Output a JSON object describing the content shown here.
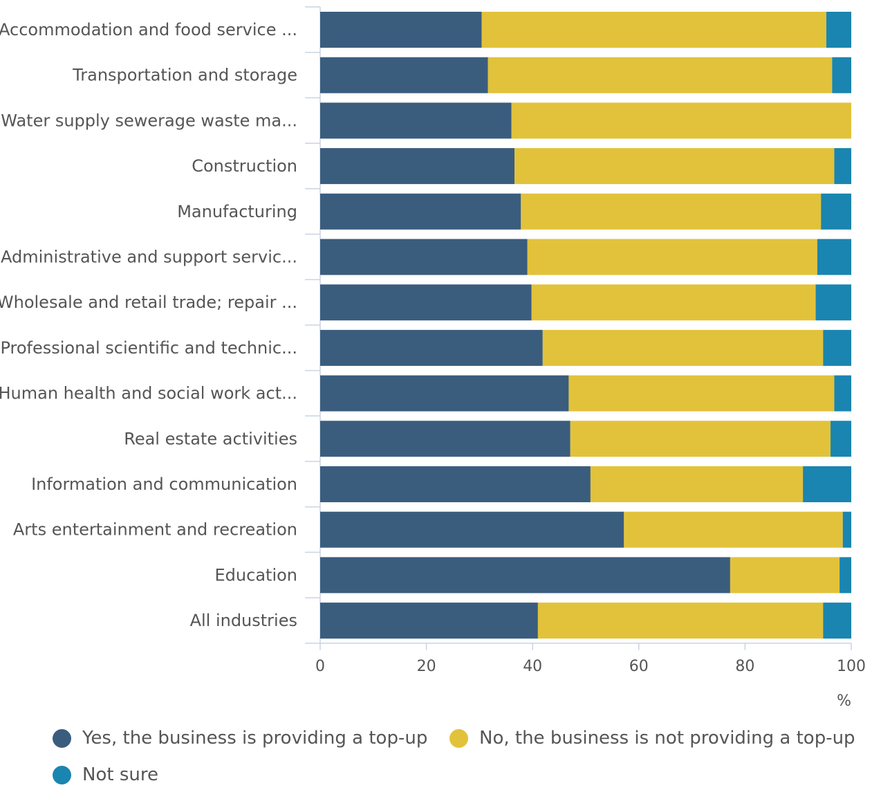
{
  "chart_data": {
    "type": "bar",
    "orientation": "horizontal",
    "stacked": true,
    "categories": [
      "Accommodation and food service ...",
      "Transportation and storage",
      "Water supply sewerage waste ma...",
      "Construction",
      "Manufacturing",
      "Administrative and support servic...",
      "Wholesale and retail trade; repair ...",
      "Professional scientific and technic...",
      "Human health and social work act...",
      "Real estate activities",
      "Information and communication",
      "Arts entertainment and recreation",
      "Education",
      "All industries"
    ],
    "series": [
      {
        "name": "Yes, the business is providing a top-up",
        "color": "#3a5d7e",
        "values": [
          30.4,
          31.6,
          36.0,
          36.6,
          37.8,
          39.0,
          39.8,
          41.9,
          46.8,
          47.1,
          50.9,
          57.2,
          77.2,
          41.0
        ]
      },
      {
        "name": "No, the business is not providing a top-up",
        "color": "#e2c23a",
        "values": [
          64.9,
          64.8,
          64.0,
          60.2,
          56.5,
          54.6,
          53.5,
          52.8,
          50.0,
          49.0,
          40.0,
          41.2,
          20.6,
          53.7
        ]
      },
      {
        "name": "Not sure",
        "color": "#1a85b0",
        "values": [
          4.7,
          3.6,
          0.0,
          3.2,
          5.7,
          6.4,
          6.7,
          5.3,
          3.2,
          3.9,
          9.1,
          1.6,
          2.2,
          5.3
        ]
      }
    ],
    "xlim": [
      0,
      100
    ],
    "xticks": [
      0,
      20,
      40,
      60,
      80,
      100
    ],
    "xunit": "%",
    "legend_position": "bottom",
    "grid": false
  }
}
